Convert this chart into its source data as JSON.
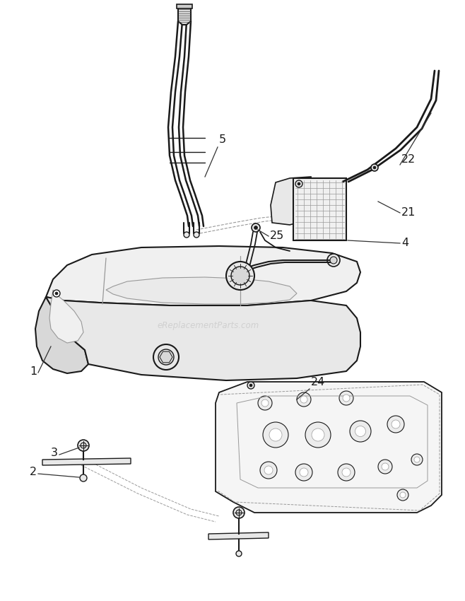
{
  "bg_color": "#ffffff",
  "line_color": "#1a1a1a",
  "light_gray": "#aaaaaa",
  "mid_gray": "#999999",
  "dark_gray": "#555555",
  "fill_light": "#f0f0f0",
  "fill_mid": "#e8e8e8",
  "fill_dark": "#d8d8d8",
  "watermark_color": "#cccccc",
  "watermark_text": "eReplacementParts.com"
}
